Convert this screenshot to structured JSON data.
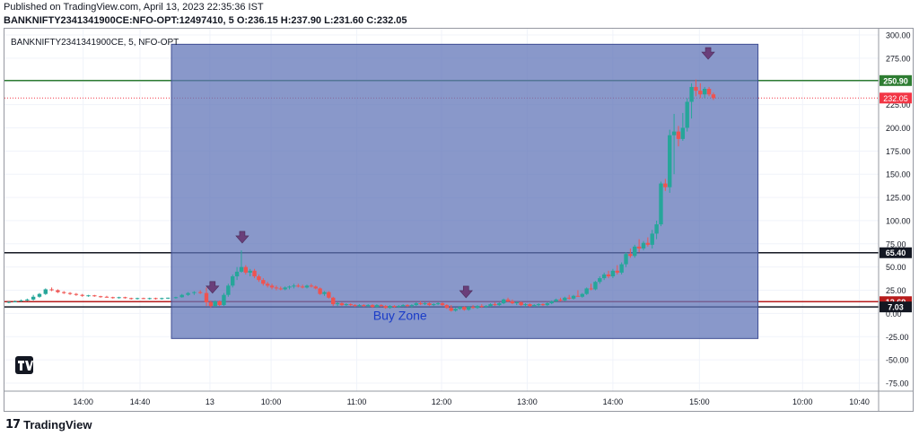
{
  "header": {
    "published": "Published on TradingView.com, April 13, 2023 22:35:36 IST",
    "symbol_line": "BANKNIFTY2341341900CE:NFO-OPT:12497410, 5",
    "ohlc": {
      "o_label": "O:",
      "o": "236.15",
      "h_label": "H:",
      "h": "237.90",
      "l_label": "L:",
      "l": "231.60",
      "c_label": "C:",
      "c": "232.05"
    }
  },
  "chart_data": {
    "type": "candlestick",
    "legend": "BANKNIFTY2341341900CE, 5, NFO-OPT",
    "y_ticks": [
      300,
      275,
      250,
      225,
      200,
      175,
      150,
      125,
      100,
      75,
      50,
      25,
      0,
      -25,
      -50,
      -75
    ],
    "y_tick_labels": [
      "300.00",
      "275.00",
      "250.00",
      "225.00",
      "200.00",
      "175.00",
      "150.00",
      "125.00",
      "100.00",
      "75.00",
      "50.00",
      "25.00",
      "0.00",
      "-25.00",
      "-50.00",
      "-75.00"
    ],
    "ylim": [
      -90,
      310
    ],
    "x_ticks": [
      {
        "label": "14:00",
        "pos": 0.09
      },
      {
        "label": "14:40",
        "pos": 0.155
      },
      {
        "label": "13",
        "pos": 0.235
      },
      {
        "label": "10:00",
        "pos": 0.305
      },
      {
        "label": "11:00",
        "pos": 0.403
      },
      {
        "label": "12:00",
        "pos": 0.5
      },
      {
        "label": "13:00",
        "pos": 0.598
      },
      {
        "label": "14:00",
        "pos": 0.696
      },
      {
        "label": "15:00",
        "pos": 0.795
      },
      {
        "label": "10:00",
        "pos": 0.913
      },
      {
        "label": "10:40",
        "pos": 0.978
      }
    ],
    "horizontal_lines": [
      {
        "value": 250.9,
        "label": "250.90",
        "color": "#2e7d32",
        "badge": "#2e7d32"
      },
      {
        "value": 65.4,
        "label": "65.40",
        "color": "#131722",
        "badge": "#131722"
      },
      {
        "value": 12.69,
        "label": "12.69",
        "color": "#b71c1c",
        "badge": "#b71c1c"
      },
      {
        "value": 7.03,
        "label": "7.03",
        "color": "#131722",
        "badge": "#131722"
      }
    ],
    "last_price": {
      "value": 232.05,
      "label": "232.05",
      "color": "#f23645"
    },
    "zone": {
      "label": "Buy Zone",
      "top": 290,
      "bottom": -27,
      "x_start": 0.191,
      "x_end": 0.862,
      "color": "#6175b8"
    },
    "markers": [
      {
        "x": 0.238,
        "value": 18
      },
      {
        "x": 0.272,
        "value": 72
      },
      {
        "x": 0.528,
        "value": 13
      },
      {
        "x": 0.805,
        "value": 270
      }
    ],
    "candles": [
      [
        0.005,
        12,
        13,
        11,
        12.5
      ],
      [
        0.012,
        12.5,
        14,
        12,
        13
      ],
      [
        0.019,
        13,
        15,
        12.5,
        14
      ],
      [
        0.026,
        14,
        16,
        13.5,
        15
      ],
      [
        0.033,
        15,
        20,
        14,
        18
      ],
      [
        0.04,
        18,
        22,
        17,
        21
      ],
      [
        0.047,
        21,
        27,
        20,
        26
      ],
      [
        0.054,
        26,
        28,
        24,
        25
      ],
      [
        0.061,
        25,
        26,
        22,
        23
      ],
      [
        0.068,
        23,
        24,
        21,
        22
      ],
      [
        0.075,
        22,
        23,
        20,
        21
      ],
      [
        0.082,
        21,
        22,
        19,
        20
      ],
      [
        0.089,
        20,
        21,
        18,
        19
      ],
      [
        0.096,
        19,
        20,
        18,
        19.5
      ],
      [
        0.103,
        19.5,
        20,
        18,
        18.5
      ],
      [
        0.11,
        18.5,
        19,
        17,
        18
      ],
      [
        0.117,
        18,
        19,
        17,
        17.5
      ],
      [
        0.124,
        17.5,
        18,
        16,
        17
      ],
      [
        0.131,
        17,
        18,
        16,
        17.5
      ],
      [
        0.138,
        17.5,
        18,
        16,
        16.5
      ],
      [
        0.145,
        16.5,
        17,
        15,
        16
      ],
      [
        0.152,
        16,
        17,
        15,
        16.5
      ],
      [
        0.159,
        16.5,
        17,
        15.5,
        16
      ],
      [
        0.166,
        16,
        17,
        15,
        16.5
      ],
      [
        0.173,
        16.5,
        17,
        15,
        16
      ],
      [
        0.18,
        16,
        17,
        15,
        16.5
      ],
      [
        0.187,
        16.5,
        17,
        15.5,
        17
      ],
      [
        0.196,
        17,
        18,
        16,
        17.5
      ],
      [
        0.203,
        17.5,
        21,
        17,
        20
      ],
      [
        0.21,
        20,
        23,
        19,
        22
      ],
      [
        0.217,
        22,
        24,
        20,
        23
      ],
      [
        0.224,
        23,
        25,
        21,
        22
      ],
      [
        0.231,
        22,
        28,
        8,
        12
      ],
      [
        0.236,
        12,
        14,
        6,
        8
      ],
      [
        0.241,
        8,
        14,
        7,
        13
      ],
      [
        0.246,
        13,
        14,
        8,
        9
      ],
      [
        0.251,
        9,
        22,
        8,
        20
      ],
      [
        0.256,
        20,
        32,
        18,
        30
      ],
      [
        0.261,
        30,
        42,
        28,
        40
      ],
      [
        0.266,
        40,
        50,
        36,
        45
      ],
      [
        0.271,
        45,
        68,
        44,
        50
      ],
      [
        0.276,
        50,
        52,
        42,
        44
      ],
      [
        0.281,
        44,
        48,
        40,
        46
      ],
      [
        0.286,
        46,
        48,
        38,
        40
      ],
      [
        0.291,
        40,
        42,
        34,
        36
      ],
      [
        0.296,
        36,
        38,
        30,
        32
      ],
      [
        0.301,
        32,
        34,
        28,
        30
      ],
      [
        0.306,
        30,
        32,
        26,
        28
      ],
      [
        0.311,
        28,
        30,
        25,
        27
      ],
      [
        0.316,
        27,
        29,
        25,
        26
      ],
      [
        0.321,
        26,
        29,
        25,
        28
      ],
      [
        0.326,
        28,
        30,
        26,
        29
      ],
      [
        0.331,
        29,
        32,
        27,
        30
      ],
      [
        0.336,
        30,
        32,
        28,
        29
      ],
      [
        0.341,
        29,
        31,
        27,
        28
      ],
      [
        0.346,
        28,
        31,
        27,
        30
      ],
      [
        0.351,
        30,
        32,
        28,
        29
      ],
      [
        0.356,
        29,
        30,
        26,
        27
      ],
      [
        0.361,
        27,
        28,
        20,
        21
      ],
      [
        0.366,
        21,
        24,
        19,
        23
      ],
      [
        0.371,
        23,
        24,
        16,
        17
      ],
      [
        0.376,
        17,
        18,
        8,
        10
      ],
      [
        0.381,
        10,
        12,
        8,
        11
      ],
      [
        0.386,
        11,
        12,
        8,
        9
      ],
      [
        0.391,
        9,
        11,
        8,
        10
      ],
      [
        0.396,
        10,
        11,
        8,
        9
      ],
      [
        0.401,
        9,
        10,
        7,
        8
      ],
      [
        0.406,
        8,
        10,
        7,
        9
      ],
      [
        0.411,
        9,
        10,
        7,
        8
      ],
      [
        0.416,
        8,
        10,
        7,
        9
      ],
      [
        0.421,
        9,
        10,
        6,
        7
      ],
      [
        0.426,
        7,
        10,
        6,
        9
      ],
      [
        0.431,
        9,
        10,
        7,
        8
      ],
      [
        0.436,
        8,
        9,
        5,
        6
      ],
      [
        0.441,
        6,
        9,
        5,
        8
      ],
      [
        0.446,
        8,
        9,
        6,
        7
      ],
      [
        0.451,
        7,
        9,
        6,
        8
      ],
      [
        0.456,
        8,
        10,
        7,
        9
      ],
      [
        0.461,
        9,
        10,
        7,
        8
      ],
      [
        0.466,
        8,
        10,
        6,
        9
      ],
      [
        0.471,
        9,
        12,
        8,
        11
      ],
      [
        0.476,
        11,
        13,
        9,
        10
      ],
      [
        0.481,
        10,
        12,
        9,
        11
      ],
      [
        0.486,
        11,
        12,
        8,
        9
      ],
      [
        0.491,
        9,
        11,
        8,
        10
      ],
      [
        0.496,
        10,
        12,
        9,
        11
      ],
      [
        0.501,
        11,
        12,
        8,
        9
      ],
      [
        0.506,
        9,
        10,
        5,
        6
      ],
      [
        0.511,
        6,
        9,
        2,
        3
      ],
      [
        0.516,
        3,
        6,
        2,
        5
      ],
      [
        0.521,
        5,
        8,
        4,
        7
      ],
      [
        0.526,
        7,
        8,
        3,
        4
      ],
      [
        0.531,
        4,
        8,
        3,
        7
      ],
      [
        0.536,
        7,
        9,
        5,
        6
      ],
      [
        0.541,
        6,
        9,
        5,
        8
      ],
      [
        0.546,
        8,
        10,
        6,
        7
      ],
      [
        0.551,
        7,
        9,
        6,
        8
      ],
      [
        0.556,
        8,
        11,
        7,
        10
      ],
      [
        0.561,
        10,
        12,
        8,
        9
      ],
      [
        0.566,
        9,
        12,
        8,
        11
      ],
      [
        0.571,
        11,
        16,
        10,
        15
      ],
      [
        0.576,
        15,
        17,
        12,
        13
      ],
      [
        0.581,
        13,
        15,
        10,
        11
      ],
      [
        0.586,
        11,
        13,
        9,
        12
      ],
      [
        0.591,
        12,
        13,
        8,
        9
      ],
      [
        0.596,
        9,
        11,
        7,
        10
      ],
      [
        0.601,
        10,
        11,
        7,
        8
      ],
      [
        0.606,
        8,
        10,
        7,
        9
      ],
      [
        0.611,
        9,
        11,
        7,
        10
      ],
      [
        0.616,
        10,
        11,
        8,
        9
      ],
      [
        0.621,
        9,
        12,
        8,
        11
      ],
      [
        0.626,
        11,
        14,
        10,
        13
      ],
      [
        0.631,
        13,
        16,
        12,
        15
      ],
      [
        0.636,
        15,
        17,
        13,
        14
      ],
      [
        0.641,
        14,
        18,
        13,
        17
      ],
      [
        0.646,
        17,
        20,
        15,
        16
      ],
      [
        0.651,
        16,
        20,
        15,
        19
      ],
      [
        0.656,
        19,
        25,
        18,
        18
      ],
      [
        0.661,
        18,
        22,
        17,
        21
      ],
      [
        0.666,
        21,
        28,
        20,
        27
      ],
      [
        0.671,
        27,
        32,
        25,
        26
      ],
      [
        0.676,
        26,
        35,
        25,
        34
      ],
      [
        0.681,
        34,
        40,
        32,
        38
      ],
      [
        0.686,
        38,
        44,
        36,
        42
      ],
      [
        0.691,
        42,
        46,
        38,
        40
      ],
      [
        0.696,
        40,
        48,
        38,
        46
      ],
      [
        0.701,
        46,
        52,
        42,
        44
      ],
      [
        0.706,
        44,
        55,
        42,
        53
      ],
      [
        0.711,
        53,
        66,
        50,
        64
      ],
      [
        0.716,
        64,
        70,
        60,
        62
      ],
      [
        0.721,
        62,
        74,
        60,
        72
      ],
      [
        0.726,
        72,
        80,
        66,
        70
      ],
      [
        0.731,
        70,
        78,
        68,
        76
      ],
      [
        0.736,
        76,
        82,
        72,
        74
      ],
      [
        0.741,
        74,
        90,
        70,
        86
      ],
      [
        0.746,
        86,
        100,
        80,
        96
      ],
      [
        0.751,
        96,
        142,
        94,
        140
      ],
      [
        0.756,
        140,
        145,
        132,
        136
      ],
      [
        0.761,
        136,
        198,
        130,
        192
      ],
      [
        0.766,
        192,
        215,
        150,
        196
      ],
      [
        0.771,
        196,
        202,
        180,
        188
      ],
      [
        0.776,
        188,
        216,
        186,
        200
      ],
      [
        0.781,
        200,
        232,
        196,
        228
      ],
      [
        0.786,
        228,
        248,
        210,
        244
      ],
      [
        0.791,
        244,
        252,
        234,
        240
      ],
      [
        0.796,
        240,
        248,
        232,
        236
      ],
      [
        0.801,
        236,
        244,
        232,
        242
      ],
      [
        0.806,
        242,
        244,
        234,
        236
      ],
      [
        0.811,
        236,
        238,
        230,
        232
      ]
    ]
  },
  "footer": {
    "brand": "TradingView"
  }
}
